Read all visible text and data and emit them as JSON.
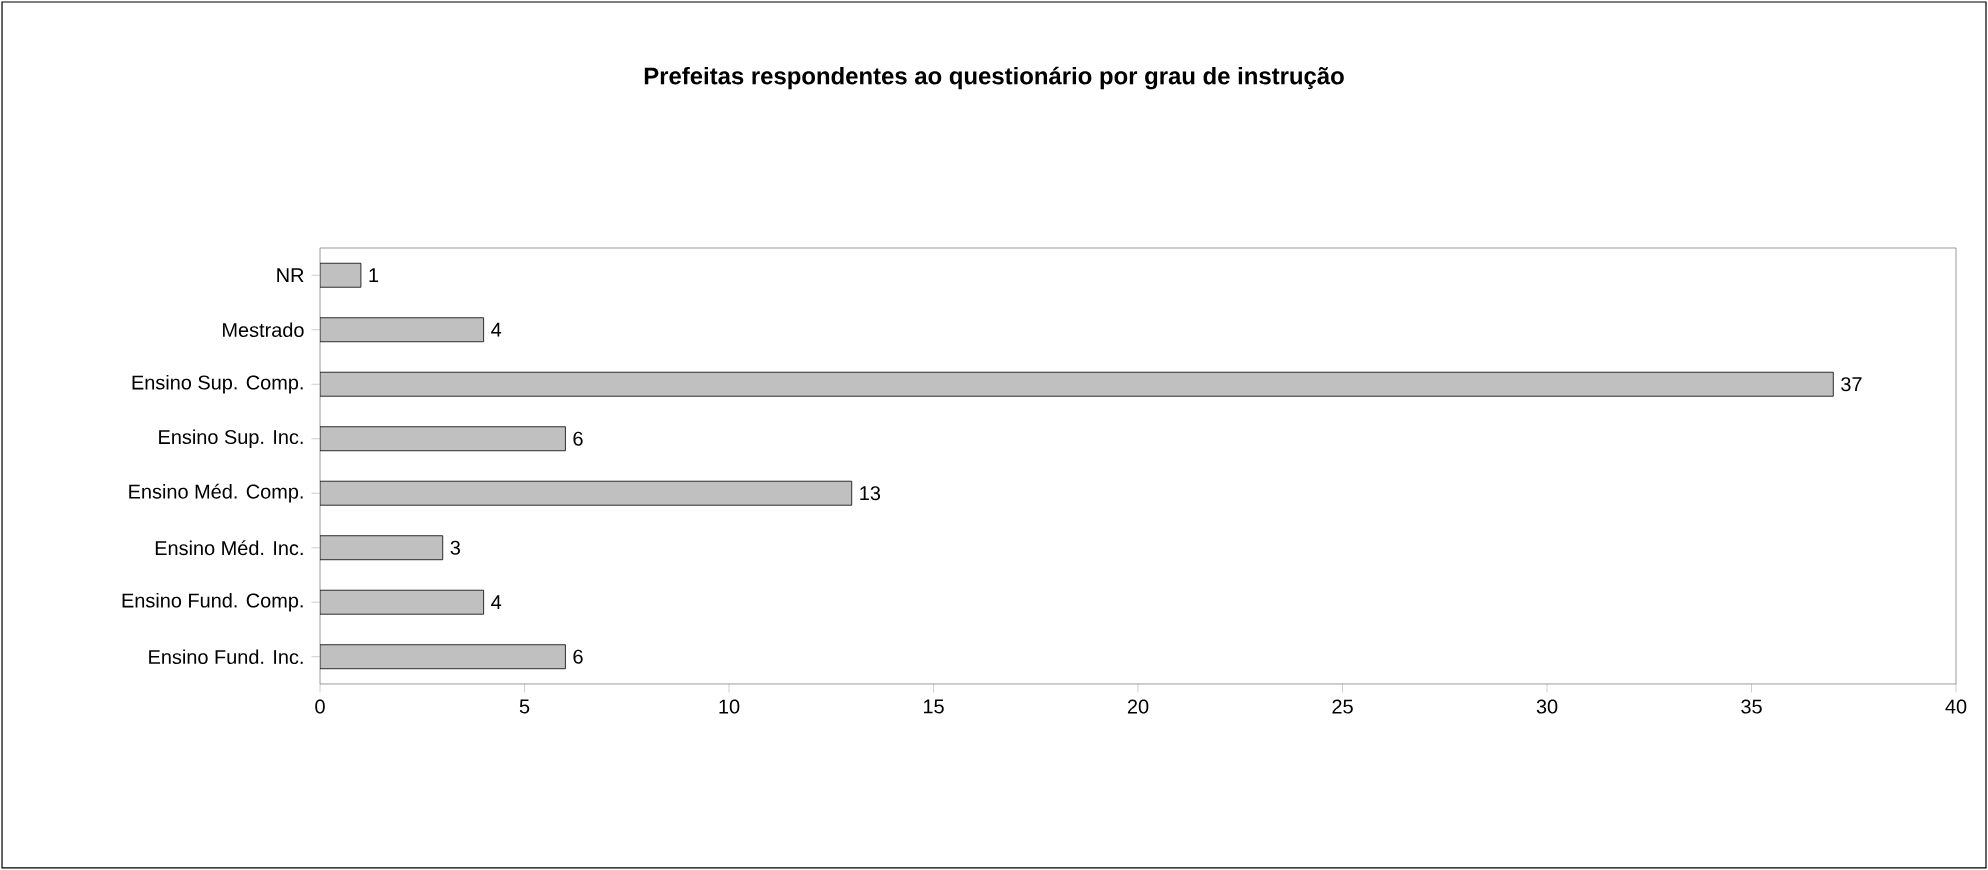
{
  "chart_data": {
    "type": "bar",
    "orientation": "horizontal",
    "title": "Prefeitas respondentes ao questionário por grau de instrução",
    "categories": [
      "NR",
      "Mestrado",
      "Ensino Sup. Comp.",
      "Ensino Sup. Inc.",
      "Ensino Méd. Comp.",
      "Ensino Méd. Inc.",
      "Ensino Fund. Comp.",
      "Ensino Fund. Inc."
    ],
    "values": [
      1,
      4,
      37,
      6,
      13,
      3,
      4,
      6
    ],
    "color": "#c0c0c0",
    "xlim": [
      0,
      40
    ],
    "xticks": [
      0,
      5,
      10,
      15,
      20,
      25,
      30,
      35,
      40
    ],
    "data_labels": true,
    "grid": false
  }
}
